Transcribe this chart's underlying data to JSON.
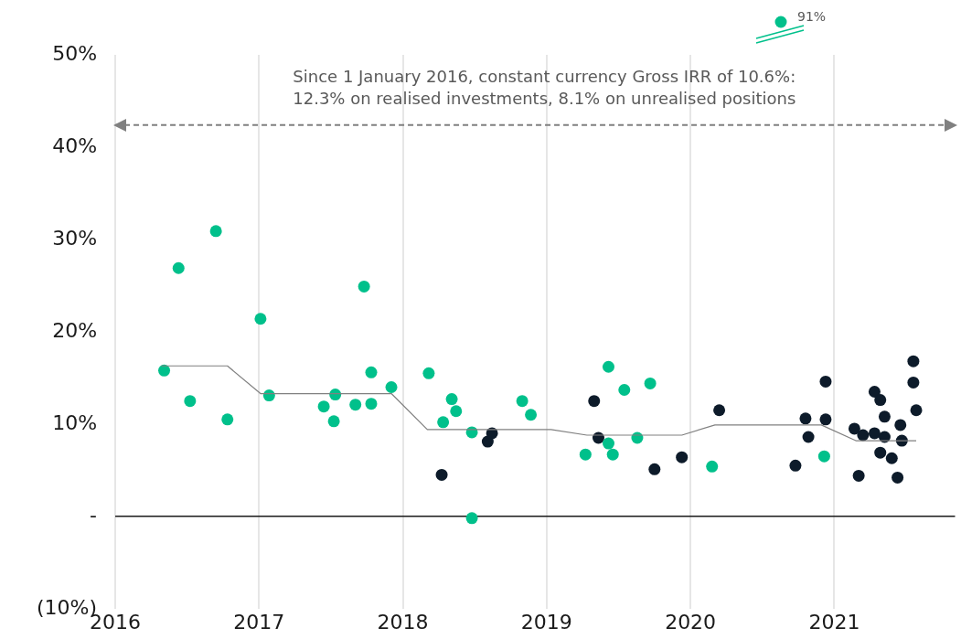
{
  "chart_data": {
    "type": "scatter",
    "xlim": [
      2016,
      2021.84
    ],
    "ylim": [
      -10,
      50
    ],
    "xticks": [
      2016,
      2017,
      2018,
      2019,
      2020,
      2021
    ],
    "yticks": [
      {
        "value": -10,
        "label": "(10%)"
      },
      {
        "value": 0,
        "label": "-"
      },
      {
        "value": 10,
        "label": "10%"
      },
      {
        "value": 20,
        "label": "20%"
      },
      {
        "value": 30,
        "label": "30%"
      },
      {
        "value": 40,
        "label": "40%"
      },
      {
        "value": 50,
        "label": "50%"
      }
    ],
    "grid": "x",
    "legend": false,
    "marker": "circle",
    "series": [
      {
        "color": "#00c08b",
        "x": [
          2016.34,
          2016.44,
          2016.52,
          2016.7,
          2016.78,
          2017.01,
          2017.07,
          2017.45,
          2017.53,
          2017.52,
          2017.67,
          2017.73,
          2017.78,
          2017.78,
          2017.92,
          2018.18,
          2018.28,
          2018.34,
          2018.37,
          2018.48,
          2018.48,
          2018.83,
          2018.89,
          2019.27,
          2019.43,
          2019.43,
          2019.46,
          2019.54,
          2019.63,
          2019.72,
          2020.15,
          2020.93
        ],
        "values": [
          15.8,
          26.9,
          12.5,
          30.9,
          10.5,
          21.4,
          13.1,
          11.9,
          13.2,
          10.3,
          12.1,
          24.9,
          15.6,
          12.2,
          14.0,
          15.5,
          10.2,
          12.7,
          11.4,
          9.1,
          -0.2,
          12.5,
          11.0,
          6.7,
          16.2,
          7.9,
          6.7,
          13.7,
          8.5,
          14.4,
          5.4,
          6.5
        ]
      },
      {
        "color": "#0d1b2a",
        "x": [
          2018.27,
          2018.59,
          2018.62,
          2019.33,
          2019.36,
          2019.75,
          2019.94,
          2020.2,
          2020.73,
          2020.8,
          2020.82,
          2020.94,
          2020.94,
          2021.14,
          2021.17,
          2021.2,
          2021.28,
          2021.28,
          2021.32,
          2021.32,
          2021.35,
          2021.35,
          2021.4,
          2021.44,
          2021.46,
          2021.47,
          2021.55,
          2021.55,
          2021.57
        ],
        "values": [
          4.5,
          8.1,
          9.0,
          12.5,
          8.5,
          5.1,
          6.4,
          11.5,
          5.5,
          10.6,
          8.6,
          14.6,
          10.5,
          9.5,
          4.4,
          8.8,
          9.0,
          13.5,
          12.6,
          6.9,
          10.8,
          8.6,
          6.3,
          4.2,
          9.9,
          8.2,
          16.8,
          14.5,
          11.5
        ]
      },
      {
        "type": "line",
        "marker": "none",
        "color": "#808080",
        "x": [
          2016.32,
          2016.78,
          2017.01,
          2017.92,
          2018.17,
          2019.03,
          2019.28,
          2019.94,
          2020.17,
          2020.91,
          2021.15,
          2021.57
        ],
        "values": [
          16.3,
          16.3,
          13.3,
          13.3,
          9.4,
          9.4,
          8.8,
          8.8,
          9.9,
          9.9,
          8.2,
          8.2
        ]
      }
    ],
    "ref_lines": [
      {
        "axis": "y",
        "value": 42.4,
        "color": "#808080",
        "line_style": "dashed"
      },
      {
        "axis": "y",
        "value": 0,
        "color": "#1a1a1a"
      }
    ],
    "annotations": [
      "Since 1 January 2016, constant currency Gross IRR of 10.6%:\n12.3% on realised investments, 8.1% on unrealised positions",
      "91%"
    ]
  }
}
